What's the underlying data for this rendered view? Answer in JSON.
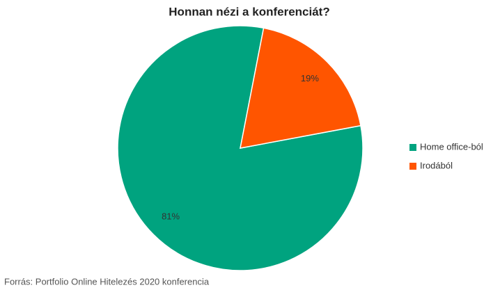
{
  "chart_data": {
    "type": "pie",
    "title": "Honnan nézi a konferenciát?",
    "categories": [
      "Home office-ból",
      "Irodából"
    ],
    "values": [
      81,
      19
    ],
    "value_labels": [
      "81%",
      "19%"
    ],
    "colors": [
      "#00a37f",
      "#ff5500"
    ],
    "legend": "right",
    "source": "Forrás: Portfolio Online Hitelezés 2020 konferencia"
  }
}
